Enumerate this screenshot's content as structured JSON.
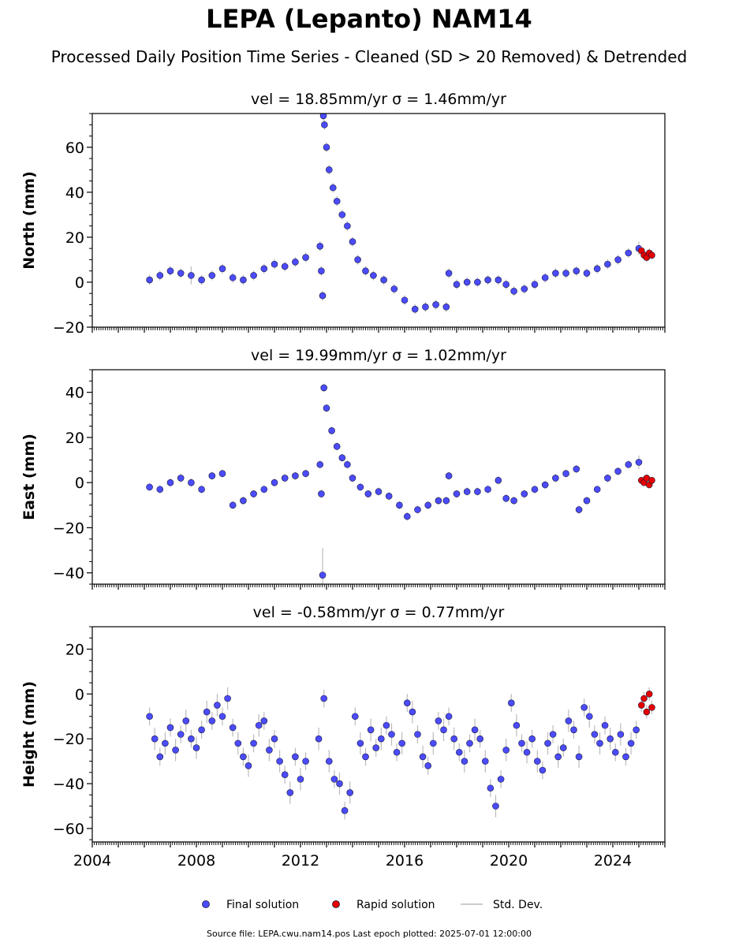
{
  "figure": {
    "title": "LEPA (Lepanto) NAM14",
    "subtitle": "Processed Daily Position Time Series - Cleaned (SD > 20 Removed) & Detrended",
    "source_note": "Source file: LEPA.cwu.nam14.pos  Last epoch plotted: 2025-07-01 12:00:00"
  },
  "legend": {
    "final_label": "Final solution",
    "rapid_label": "Rapid solution",
    "sd_label": "Std. Dev."
  },
  "colors": {
    "final": "#4b4bff",
    "rapid": "#e60000",
    "sd": "#bbbbbb",
    "edge": "#1a1a3a"
  },
  "chart_data": [
    {
      "type": "scatter",
      "title": "vel = 18.85mm/yr   σ = 1.46mm/yr",
      "ylabel": "North (mm)",
      "xlim": [
        2004,
        2026
      ],
      "ylim": [
        -20,
        75
      ],
      "yticks": [
        -20,
        0,
        20,
        40,
        60
      ],
      "xticks": [
        2004,
        2008,
        2012,
        2016,
        2020,
        2024
      ],
      "show_xtick_labels": false,
      "series": [
        {
          "x": [
            2006.2,
            2006.6,
            2007.0,
            2007.4,
            2007.8,
            2008.2,
            2008.6,
            2009.0,
            2009.4,
            2009.8,
            2010.2,
            2010.6,
            2011.0,
            2011.4,
            2011.8,
            2012.2,
            2012.75,
            2012.8,
            2012.85,
            2012.88,
            2012.92,
            2013.0,
            2013.1,
            2013.25,
            2013.4,
            2013.6,
            2013.8,
            2014.0,
            2014.2,
            2014.5,
            2014.8,
            2015.2,
            2015.6,
            2016.0,
            2016.4,
            2016.8,
            2017.2,
            2017.6,
            2017.7,
            2018.0,
            2018.4,
            2018.8,
            2019.2,
            2019.6,
            2019.9,
            2020.2,
            2020.6,
            2021.0,
            2021.4,
            2021.8,
            2022.2,
            2022.6,
            2023.0,
            2023.4,
            2023.8,
            2024.2,
            2024.6,
            2025.0
          ],
          "y": [
            1,
            3,
            5,
            4,
            3,
            1,
            3,
            6,
            2,
            1,
            3,
            6,
            8,
            7,
            9,
            11,
            16,
            5,
            -6,
            74,
            70,
            60,
            50,
            42,
            36,
            30,
            25,
            18,
            10,
            5,
            3,
            1,
            -3,
            -8,
            -12,
            -11,
            -10,
            -11,
            4,
            -1,
            0,
            0,
            1,
            1,
            -1,
            -4,
            -3,
            -1,
            2,
            4,
            4,
            5,
            4,
            6,
            8,
            10,
            13,
            15
          ],
          "sd": [
            2.2,
            2.2,
            2.2,
            2.2,
            4.0,
            2.2,
            2.2,
            2.2,
            2.2,
            2.2,
            2.2,
            2.2,
            2.2,
            2.2,
            2.2,
            2.2,
            2.2,
            2.2,
            2.2,
            2.2,
            2.2,
            2.2,
            2.2,
            2.2,
            2.2,
            2.2,
            2.2,
            2.2,
            2.2,
            2.2,
            2.2,
            2.2,
            2.2,
            2.2,
            2.2,
            2.2,
            2.2,
            2.2,
            2.2,
            2.2,
            2.2,
            2.2,
            2.2,
            2.2,
            2.2,
            2.2,
            2.2,
            2.2,
            2.2,
            2.2,
            2.2,
            2.2,
            2.2,
            2.2,
            2.2,
            2.2,
            2.2,
            3.0
          ]
        },
        {
          "x": [
            2025.1,
            2025.2,
            2025.3,
            2025.4,
            2025.5
          ],
          "y": [
            14,
            12,
            11,
            13,
            12
          ],
          "sd": [
            2,
            2,
            2,
            2,
            2
          ]
        }
      ]
    },
    {
      "type": "scatter",
      "title": "vel = 19.99mm/yr   σ = 1.02mm/yr",
      "ylabel": "East (mm)",
      "xlim": [
        2004,
        2026
      ],
      "ylim": [
        -45,
        50
      ],
      "yticks": [
        -40,
        -20,
        0,
        20,
        40
      ],
      "xticks": [
        2004,
        2008,
        2012,
        2016,
        2020,
        2024
      ],
      "show_xtick_labels": false,
      "series": [
        {
          "x": [
            2006.2,
            2006.6,
            2007.0,
            2007.4,
            2007.8,
            2008.2,
            2008.6,
            2009.0,
            2009.4,
            2009.8,
            2010.2,
            2010.6,
            2011.0,
            2011.4,
            2011.8,
            2012.2,
            2012.75,
            2012.8,
            2012.85,
            2012.9,
            2013.0,
            2013.2,
            2013.4,
            2013.6,
            2013.8,
            2014.0,
            2014.3,
            2014.6,
            2015.0,
            2015.4,
            2015.8,
            2016.1,
            2016.5,
            2016.9,
            2017.3,
            2017.6,
            2017.7,
            2018.0,
            2018.4,
            2018.8,
            2019.2,
            2019.6,
            2019.9,
            2020.2,
            2020.6,
            2021.0,
            2021.4,
            2021.8,
            2022.2,
            2022.6,
            2022.7,
            2023.0,
            2023.4,
            2023.8,
            2024.2,
            2024.6,
            2025.0
          ],
          "y": [
            -2,
            -3,
            0,
            2,
            0,
            -3,
            3,
            4,
            -10,
            -8,
            -5,
            -3,
            0,
            2,
            3,
            4,
            8,
            -5,
            -41,
            42,
            33,
            23,
            16,
            11,
            8,
            2,
            -2,
            -5,
            -4,
            -6,
            -10,
            -15,
            -12,
            -10,
            -8,
            -8,
            3,
            -5,
            -4,
            -4,
            -3,
            1,
            -7,
            -8,
            -5,
            -3,
            -1,
            2,
            4,
            6,
            -12,
            -8,
            -3,
            2,
            5,
            8,
            9
          ],
          "sd": [
            1.8,
            1.8,
            1.8,
            1.8,
            1.8,
            1.8,
            1.8,
            1.8,
            1.8,
            1.8,
            1.8,
            1.8,
            1.8,
            1.8,
            1.8,
            1.8,
            1.8,
            1.8,
            12,
            1.8,
            1.8,
            1.8,
            1.8,
            1.8,
            1.8,
            1.8,
            1.8,
            1.8,
            1.8,
            1.8,
            1.8,
            1.8,
            1.8,
            1.8,
            1.8,
            1.8,
            1.8,
            1.8,
            1.8,
            1.8,
            1.8,
            1.8,
            1.8,
            1.8,
            1.8,
            1.8,
            1.8,
            1.8,
            1.8,
            1.8,
            1.8,
            1.8,
            1.8,
            1.8,
            1.8,
            1.8,
            3
          ]
        },
        {
          "x": [
            2025.1,
            2025.2,
            2025.3,
            2025.4,
            2025.5
          ],
          "y": [
            1,
            0,
            2,
            -1,
            1
          ],
          "sd": [
            1.5,
            1.5,
            1.5,
            1.5,
            1.5
          ]
        }
      ]
    },
    {
      "type": "scatter",
      "title": "vel = -0.58mm/yr   σ = 0.77mm/yr",
      "ylabel": "Height (mm)",
      "xlim": [
        2004,
        2026
      ],
      "ylim": [
        -66,
        30
      ],
      "yticks": [
        -60,
        -40,
        -20,
        0,
        20
      ],
      "xticks": [
        2004,
        2008,
        2012,
        2016,
        2020,
        2024
      ],
      "show_xtick_labels": true,
      "series": [
        {
          "x": [
            2006.2,
            2006.4,
            2006.6,
            2006.8,
            2007.0,
            2007.2,
            2007.4,
            2007.6,
            2007.8,
            2008.0,
            2008.2,
            2008.4,
            2008.6,
            2008.8,
            2009.0,
            2009.2,
            2009.4,
            2009.6,
            2009.8,
            2010.0,
            2010.2,
            2010.4,
            2010.6,
            2010.8,
            2011.0,
            2011.2,
            2011.4,
            2011.6,
            2011.8,
            2012.0,
            2012.2,
            2012.7,
            2012.9,
            2013.1,
            2013.3,
            2013.5,
            2013.7,
            2013.9,
            2014.1,
            2014.3,
            2014.5,
            2014.7,
            2014.9,
            2015.1,
            2015.3,
            2015.5,
            2015.7,
            2015.9,
            2016.1,
            2016.3,
            2016.5,
            2016.7,
            2016.9,
            2017.1,
            2017.3,
            2017.5,
            2017.7,
            2017.9,
            2018.1,
            2018.3,
            2018.5,
            2018.7,
            2018.9,
            2019.1,
            2019.3,
            2019.5,
            2019.7,
            2019.9,
            2020.1,
            2020.3,
            2020.5,
            2020.7,
            2020.9,
            2021.1,
            2021.3,
            2021.5,
            2021.7,
            2021.9,
            2022.1,
            2022.3,
            2022.5,
            2022.7,
            2022.9,
            2023.1,
            2023.3,
            2023.5,
            2023.7,
            2023.9,
            2024.1,
            2024.3,
            2024.5,
            2024.7,
            2024.9
          ],
          "y": [
            -10,
            -20,
            -28,
            -22,
            -15,
            -25,
            -18,
            -12,
            -20,
            -24,
            -16,
            -8,
            -12,
            -5,
            -10,
            -2,
            -15,
            -22,
            -28,
            -32,
            -22,
            -14,
            -12,
            -25,
            -20,
            -30,
            -36,
            -44,
            -28,
            -38,
            -30,
            -20,
            -2,
            -30,
            -38,
            -40,
            -52,
            -44,
            -10,
            -22,
            -28,
            -16,
            -24,
            -20,
            -14,
            -18,
            -26,
            -22,
            -4,
            -8,
            -18,
            -28,
            -32,
            -22,
            -12,
            -16,
            -10,
            -20,
            -26,
            -30,
            -22,
            -16,
            -20,
            -30,
            -42,
            -50,
            -38,
            -25,
            -4,
            -14,
            -22,
            -26,
            -20,
            -30,
            -34,
            -22,
            -18,
            -28,
            -24,
            -12,
            -16,
            -28,
            -6,
            -10,
            -18,
            -22,
            -14,
            -20,
            -26,
            -18,
            -28,
            -22,
            -16
          ],
          "sd": [
            4,
            5,
            4,
            5,
            4,
            5,
            4,
            5,
            4,
            5,
            4,
            5,
            4,
            5,
            4,
            5,
            4,
            5,
            4,
            5,
            4,
            5,
            4,
            5,
            4,
            5,
            4,
            5,
            4,
            5,
            4,
            5,
            4,
            5,
            4,
            5,
            4,
            5,
            4,
            5,
            4,
            5,
            4,
            5,
            4,
            5,
            4,
            5,
            4,
            5,
            4,
            5,
            4,
            5,
            4,
            5,
            4,
            5,
            4,
            5,
            4,
            5,
            4,
            5,
            4,
            5,
            4,
            5,
            4,
            5,
            4,
            5,
            4,
            5,
            4,
            5,
            4,
            5,
            4,
            5,
            4,
            5,
            4,
            5,
            4,
            5,
            4,
            5,
            4,
            5,
            4,
            5,
            4
          ]
        },
        {
          "x": [
            2025.1,
            2025.2,
            2025.3,
            2025.4,
            2025.5
          ],
          "y": [
            -5,
            -2,
            -8,
            0,
            -6
          ],
          "sd": [
            3,
            3,
            3,
            3,
            3
          ]
        }
      ]
    }
  ]
}
